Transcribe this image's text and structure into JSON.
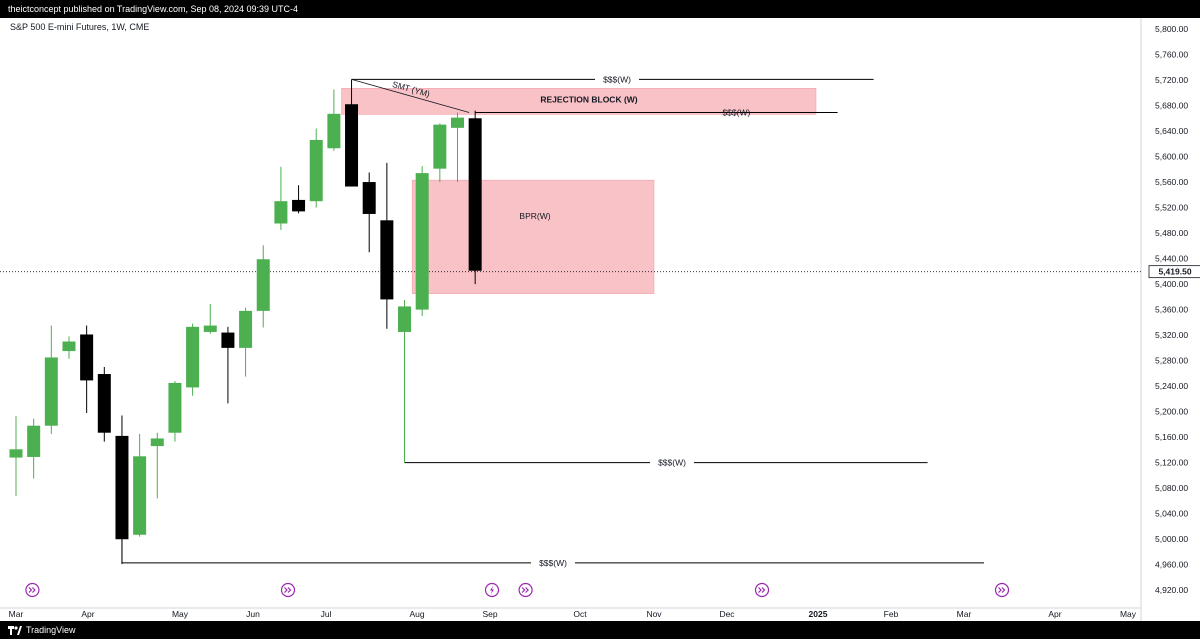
{
  "header": {
    "publisher_text": "theictconcept published on TradingView.com, Sep 08, 2024 09:39 UTC-4"
  },
  "footer": {
    "brand": "TradingView"
  },
  "chart_data": {
    "type": "candlestick",
    "title": "S&P 500 E-mini Futures, 1W, CME",
    "timeframe": "1W",
    "ylim": [
      4900,
      5800
    ],
    "y_ticks": [
      4920,
      4960,
      5000,
      5040,
      5080,
      5120,
      5160,
      5200,
      5240,
      5280,
      5320,
      5360,
      5400,
      5440,
      5480,
      5520,
      5560,
      5600,
      5640,
      5680,
      5720,
      5760,
      5800
    ],
    "y_tick_labels": [
      "4,920.00",
      "4,960.00",
      "5,000.00",
      "5,040.00",
      "5,080.00",
      "5,120.00",
      "5,160.00",
      "5,200.00",
      "5,240.00",
      "5,280.00",
      "5,320.00",
      "5,360.00",
      "5,400.00",
      "5,440.00",
      "5,480.00",
      "5,520.00",
      "5,560.00",
      "5,600.00",
      "5,640.00",
      "5,680.00",
      "5,720.00",
      "5,760.00",
      "5,800.00"
    ],
    "x_ticks": [
      {
        "label": "Mar",
        "bold": false
      },
      {
        "label": "Apr",
        "bold": false
      },
      {
        "label": "May",
        "bold": false
      },
      {
        "label": "Jun",
        "bold": false
      },
      {
        "label": "Jul",
        "bold": false
      },
      {
        "label": "Aug",
        "bold": false
      },
      {
        "label": "Sep",
        "bold": false
      },
      {
        "label": "Oct",
        "bold": false
      },
      {
        "label": "Nov",
        "bold": false
      },
      {
        "label": "Dec",
        "bold": false
      },
      {
        "label": "2025",
        "bold": true
      },
      {
        "label": "Feb",
        "bold": false
      },
      {
        "label": "Mar",
        "bold": false
      },
      {
        "label": "Apr",
        "bold": false
      },
      {
        "label": "May",
        "bold": false
      }
    ],
    "current_price": 5419.5,
    "current_price_label": "5,419.50",
    "candles": [
      {
        "o": 5128,
        "h": 5193,
        "l": 5068,
        "c": 5141
      },
      {
        "o": 5129,
        "h": 5189,
        "l": 5095,
        "c": 5178
      },
      {
        "o": 5178,
        "h": 5335,
        "l": 5165,
        "c": 5285
      },
      {
        "o": 5295,
        "h": 5318,
        "l": 5283,
        "c": 5310
      },
      {
        "o": 5321,
        "h": 5335,
        "l": 5198,
        "c": 5249
      },
      {
        "o": 5259,
        "h": 5270,
        "l": 5153,
        "c": 5167
      },
      {
        "o": 5162,
        "h": 5194,
        "l": 4961,
        "c": 5000
      },
      {
        "o": 5007,
        "h": 5165,
        "l": 5004,
        "c": 5130
      },
      {
        "o": 5146,
        "h": 5167,
        "l": 5064,
        "c": 5158
      },
      {
        "o": 5167,
        "h": 5248,
        "l": 5153,
        "c": 5245
      },
      {
        "o": 5238,
        "h": 5338,
        "l": 5225,
        "c": 5333
      },
      {
        "o": 5325,
        "h": 5369,
        "l": 5322,
        "c": 5335
      },
      {
        "o": 5324,
        "h": 5333,
        "l": 5213,
        "c": 5300
      },
      {
        "o": 5300,
        "h": 5363,
        "l": 5255,
        "c": 5358
      },
      {
        "o": 5358,
        "h": 5461,
        "l": 5332,
        "c": 5439
      },
      {
        "o": 5495,
        "h": 5584,
        "l": 5485,
        "c": 5530
      },
      {
        "o": 5532,
        "h": 5555,
        "l": 5511,
        "c": 5514
      },
      {
        "o": 5530,
        "h": 5644,
        "l": 5520,
        "c": 5626
      },
      {
        "o": 5613,
        "h": 5705,
        "l": 5609,
        "c": 5667
      },
      {
        "o": 5682,
        "h": 5721,
        "l": 5558,
        "c": 5553
      },
      {
        "o": 5560,
        "h": 5575,
        "l": 5450,
        "c": 5510
      },
      {
        "o": 5500,
        "h": 5590,
        "l": 5330,
        "c": 5376
      },
      {
        "o": 5325,
        "h": 5375,
        "l": 5120,
        "c": 5365
      },
      {
        "o": 5360,
        "h": 5585,
        "l": 5350,
        "c": 5574
      },
      {
        "o": 5581,
        "h": 5652,
        "l": 5560,
        "c": 5650
      },
      {
        "o": 5645,
        "h": 5669,
        "l": 5560,
        "c": 5661
      },
      {
        "o": 5660,
        "h": 5672,
        "l": 5400,
        "c": 5421
      }
    ],
    "zones": [
      {
        "label": "REJECTION BLOCK (W)",
        "y_low": 5666,
        "y_high": 5707,
        "from_candle": 19,
        "to_x_pct": 0.68
      },
      {
        "label": "BPR(W)",
        "y_low": 5385,
        "y_high": 5563,
        "from_candle": 23,
        "to_x_pct": 0.545
      }
    ],
    "levels": [
      {
        "label": "$$$(W)",
        "price": 5721,
        "from_candle": 19,
        "to_x_pct": 0.728
      },
      {
        "label": "$$$(W)",
        "price": 5669,
        "from_candle": 26,
        "to_x_pct": 0.698
      },
      {
        "label": "$$$(W)",
        "price": 5120,
        "from_candle": 22,
        "to_x_pct": 0.773
      },
      {
        "label": "$$$(W)",
        "price": 4963,
        "from_candle": 6,
        "to_x_pct": 0.82
      }
    ],
    "annotation": {
      "label": "SMT (YM)",
      "from_candle": 19,
      "from_price": 5721,
      "to_candle": 26,
      "to_price": 5669
    },
    "event_icons": [
      {
        "type": "forward",
        "x_pct": 0.027
      },
      {
        "type": "forward",
        "x_pct": 0.24
      },
      {
        "type": "forward",
        "x_pct": 0.438
      },
      {
        "type": "lightning",
        "x_pct": 0.41
      },
      {
        "type": "forward",
        "x_pct": 0.635
      },
      {
        "type": "forward",
        "x_pct": 0.835
      }
    ],
    "colors": {
      "up": "#4caf50",
      "down": "#000000",
      "zone": "#f8bbc0",
      "zone_stroke": "#f29aa2",
      "level": "#000000",
      "icon": "#9c27b0"
    }
  }
}
